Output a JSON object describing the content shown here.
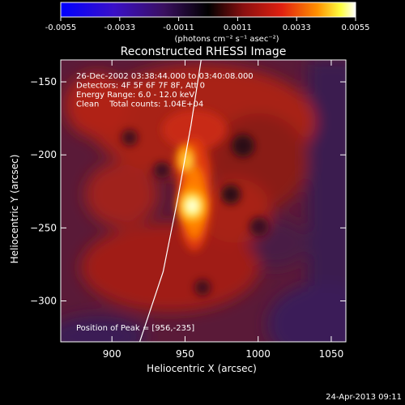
{
  "colorbar": {
    "ticks": [
      "-0.0055",
      "-0.0033",
      "-0.0011",
      "0.0011",
      "0.0033",
      "0.0055"
    ],
    "unit_label": "(photons cm⁻² s⁻¹ asec⁻²)"
  },
  "chart_data": {
    "type": "heatmap",
    "title": "Reconstructed RHESSI Image",
    "xlabel": "Heliocentric X (arcsec)",
    "ylabel": "Heliocentric Y (arcsec)",
    "xlim": [
      865,
      1060
    ],
    "ylim": [
      -328,
      -135
    ],
    "xticks": [
      900,
      950,
      1000,
      1050
    ],
    "yticks": [
      -150,
      -200,
      -250,
      -300
    ],
    "color_range": [
      -0.0055,
      0.0055
    ],
    "colormap": "blue-purple-black-red-yellow-white",
    "peak": {
      "x": 956,
      "y": -235
    },
    "info_lines": [
      "26-Dec-2002 03:38:44.000 to 03:40:08.000",
      "Detectors: 4F 5F 6F 7F 8F, Att 0",
      "Energy Range: 6.0 - 12.0 keV",
      "Clean    Total counts: 1.04E+04"
    ],
    "peak_label": "Position of Peak = [956,-235]",
    "limb_curve": [
      {
        "x": 919,
        "y": -328
      },
      {
        "x": 935,
        "y": -280
      },
      {
        "x": 945,
        "y": -230
      },
      {
        "x": 954,
        "y": -180
      },
      {
        "x": 961,
        "y": -135
      }
    ]
  },
  "footer_date": "24-Apr-2013 09:11"
}
